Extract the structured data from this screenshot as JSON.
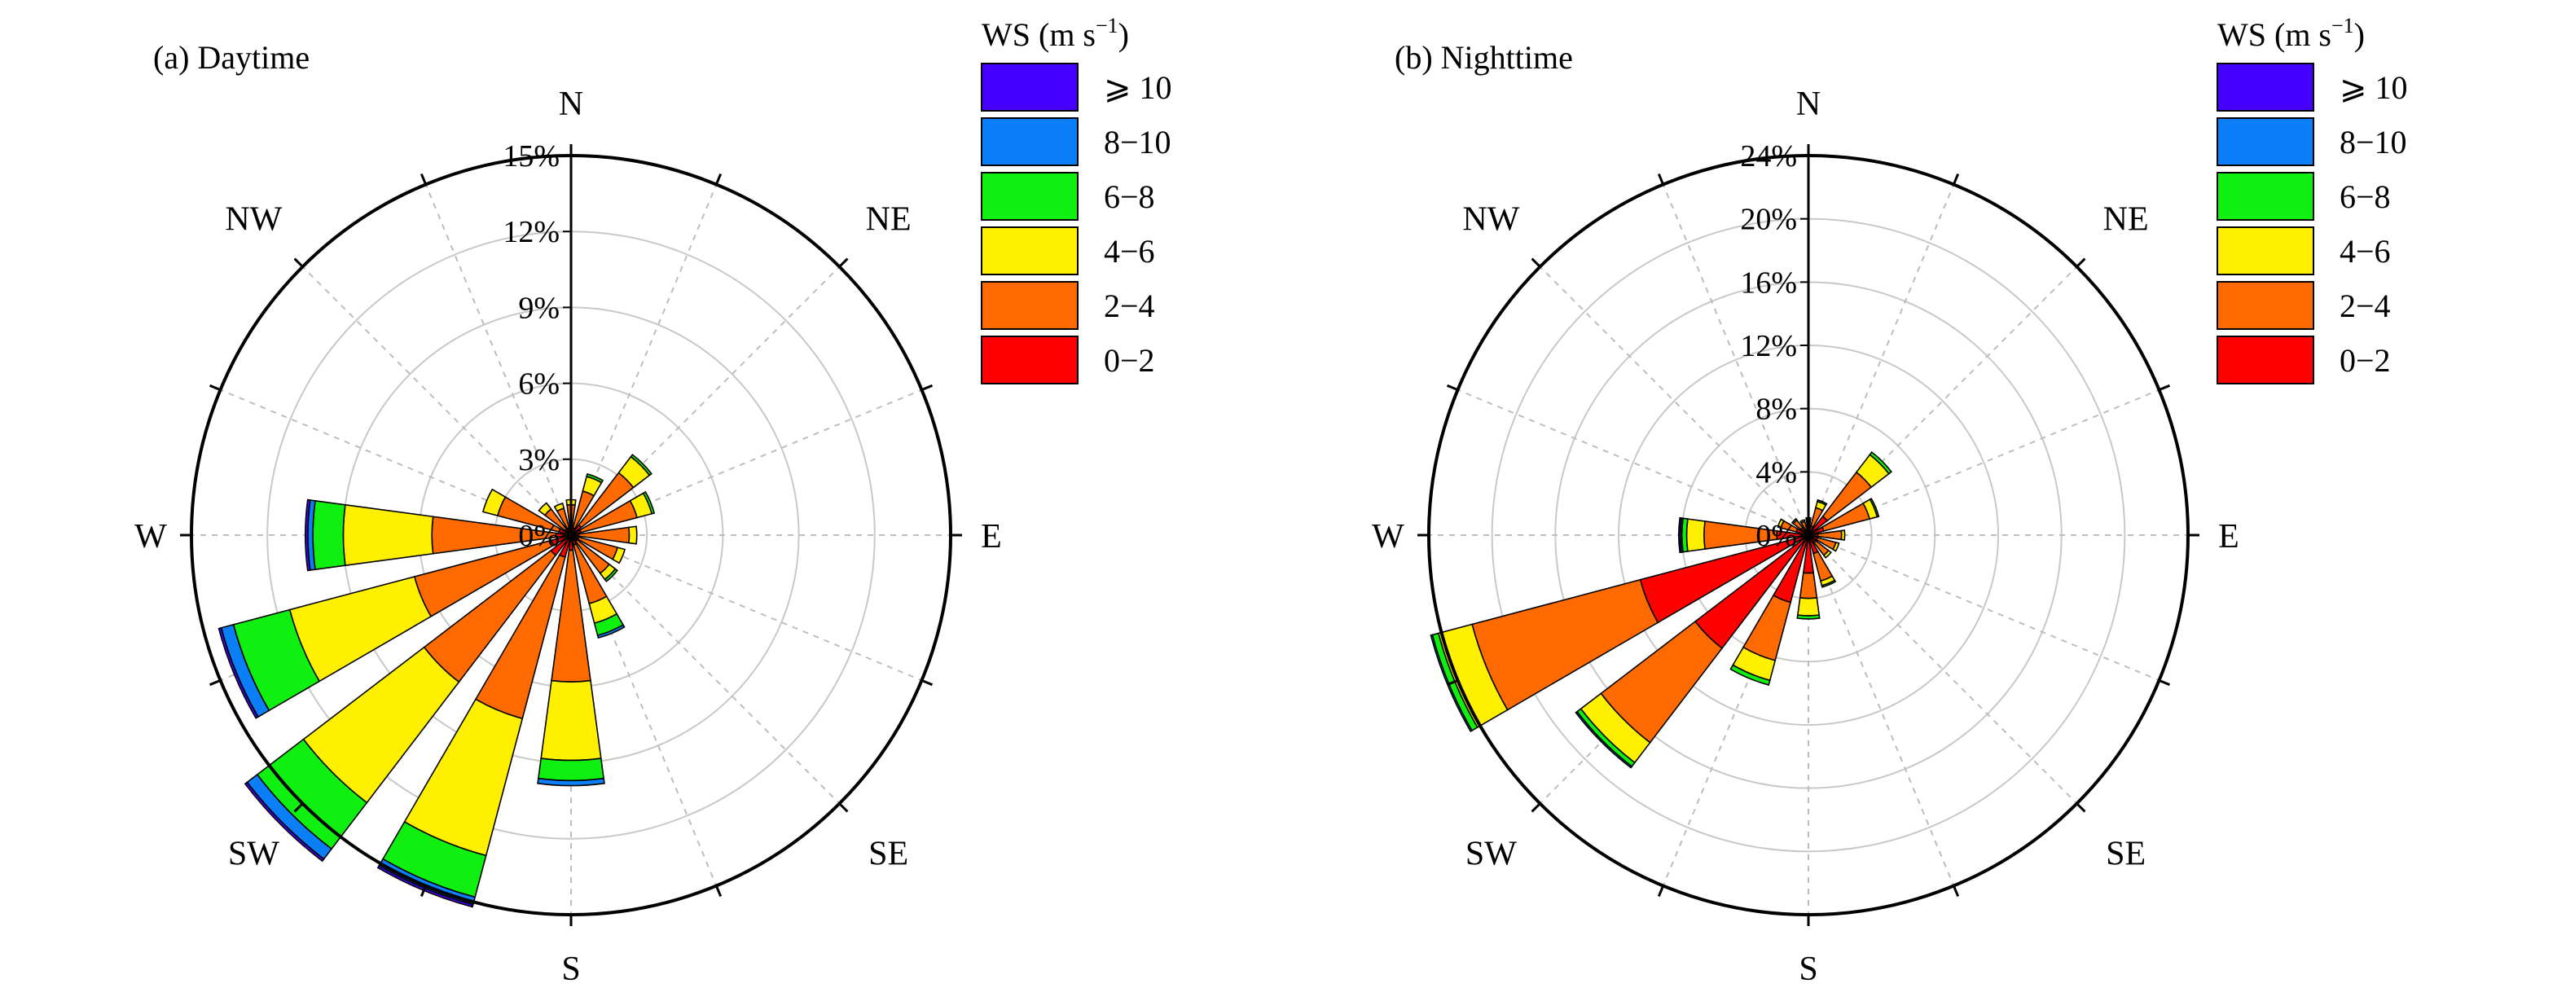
{
  "chart_data": [
    {
      "type": "windrose",
      "title": "(a) Daytime",
      "directions": [
        "N",
        "NNE",
        "NE",
        "ENE",
        "E",
        "ESE",
        "SE",
        "SSE",
        "S",
        "SSW",
        "SW",
        "WSW",
        "W",
        "WNW",
        "NW",
        "NNW"
      ],
      "compass_labels": [
        "N",
        "NE",
        "E",
        "SE",
        "S",
        "SW",
        "W",
        "NW"
      ],
      "radial_ticks": [
        "0%",
        "3%",
        "6%",
        "9%",
        "12%",
        "15%"
      ],
      "rmax": 15,
      "speed_bins": [
        "0−2",
        "2−4",
        "4−6",
        "6−8",
        "8−10",
        "⩾ 10"
      ],
      "series": [
        {
          "name": "0−2",
          "values": [
            0.2,
            0.3,
            0.5,
            0.4,
            0.3,
            0.3,
            0.3,
            0.4,
            0.6,
            0.9,
            1.0,
            0.8,
            0.6,
            0.5,
            0.3,
            0.3
          ]
        },
        {
          "name": "2−4",
          "values": [
            1.0,
            1.5,
            2.6,
            2.3,
            2.0,
            1.6,
            1.6,
            2.4,
            5.2,
            6.6,
            6.3,
            5.6,
            4.9,
            2.5,
            1.0,
            0.8
          ]
        },
        {
          "name": "4−6",
          "values": [
            0.2,
            0.6,
            0.8,
            0.6,
            0.3,
            0.3,
            0.3,
            0.8,
            3.1,
            5.6,
            6.0,
            5.1,
            3.5,
            0.6,
            0.3,
            0.2
          ]
        },
        {
          "name": "6−8",
          "values": [
            0.0,
            0.1,
            0.1,
            0.1,
            0.0,
            0.0,
            0.1,
            0.5,
            0.8,
            1.7,
            2.3,
            2.3,
            1.2,
            0.0,
            0.0,
            0.0
          ]
        },
        {
          "name": "8−10",
          "values": [
            0.0,
            0.0,
            0.0,
            0.0,
            0.0,
            0.0,
            0.0,
            0.1,
            0.2,
            0.3,
            0.5,
            0.5,
            0.2,
            0.0,
            0.0,
            0.0
          ]
        },
        {
          "name": "⩾ 10",
          "values": [
            0.0,
            0.0,
            0.0,
            0.0,
            0.0,
            0.0,
            0.0,
            0.0,
            0.0,
            0.1,
            0.1,
            0.1,
            0.1,
            0.0,
            0.0,
            0.0
          ]
        }
      ]
    },
    {
      "type": "windrose",
      "title": "(b) Nighttime",
      "directions": [
        "N",
        "NNE",
        "NE",
        "ENE",
        "E",
        "ESE",
        "SE",
        "SSE",
        "S",
        "SSW",
        "SW",
        "WSW",
        "W",
        "WNW",
        "NW",
        "NNW"
      ],
      "compass_labels": [
        "N",
        "NE",
        "E",
        "SE",
        "S",
        "SW",
        "W",
        "NW"
      ],
      "radial_ticks": [
        "0%",
        "4%",
        "8%",
        "12%",
        "16%",
        "20%",
        "24%"
      ],
      "rmax": 24,
      "speed_bins": [
        "0−2",
        "2−4",
        "4−6",
        "6−8",
        "8−10",
        "⩾ 10"
      ],
      "series": [
        {
          "name": "0−2",
          "values": [
            0.4,
            0.6,
            1.5,
            1.0,
            0.6,
            0.6,
            0.6,
            1.2,
            2.4,
            4.4,
            9.0,
            11.0,
            2.0,
            0.8,
            0.6,
            0.4
          ]
        },
        {
          "name": "2−4",
          "values": [
            0.6,
            1.2,
            3.5,
            3.0,
            1.5,
            1.2,
            1.0,
            1.8,
            1.6,
            3.8,
            7.5,
            11.0,
            4.6,
            1.0,
            0.6,
            0.5
          ]
        },
        {
          "name": "4−6",
          "values": [
            0.1,
            0.4,
            1.4,
            0.5,
            0.2,
            0.2,
            0.2,
            0.3,
            1.1,
            1.3,
            1.6,
            2.2,
            1.1,
            0.2,
            0.1,
            0.1
          ]
        },
        {
          "name": "6−8",
          "values": [
            0.0,
            0.1,
            0.2,
            0.1,
            0.0,
            0.0,
            0.0,
            0.1,
            0.2,
            0.3,
            0.3,
            0.4,
            0.3,
            0.0,
            0.0,
            0.0
          ]
        },
        {
          "name": "8−10",
          "values": [
            0.0,
            0.0,
            0.0,
            0.0,
            0.0,
            0.0,
            0.0,
            0.0,
            0.0,
            0.0,
            0.1,
            0.1,
            0.1,
            0.0,
            0.0,
            0.0
          ]
        },
        {
          "name": "⩾ 10",
          "values": [
            0.0,
            0.0,
            0.0,
            0.0,
            0.0,
            0.0,
            0.0,
            0.0,
            0.0,
            0.0,
            0.0,
            0.0,
            0.1,
            0.0,
            0.0,
            0.0
          ]
        }
      ]
    }
  ],
  "legend": {
    "title": "WS (m s",
    "title_sup": "−1",
    "title_close": ")",
    "items": [
      {
        "label": "⩾ 10",
        "color": "#4500ff"
      },
      {
        "label": "8−10",
        "color": "#0a7ff7"
      },
      {
        "label": "6−8",
        "color": "#10f010"
      },
      {
        "label": "4−6",
        "color": "#fff000"
      },
      {
        "label": "2−4",
        "color": "#ff6a00"
      },
      {
        "label": "0−2",
        "color": "#ff0000"
      }
    ]
  }
}
